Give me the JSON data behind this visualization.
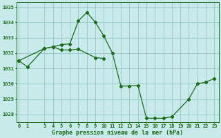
{
  "title": "Graphe pression niveau de la mer (hPa)",
  "bg_color": "#c8eaea",
  "grid_color": "#96c8c8",
  "line_color": "#1a6b1a",
  "series1_x": [
    0,
    1,
    3,
    4,
    5,
    6,
    7,
    8,
    9,
    10,
    11,
    12,
    13,
    14,
    15,
    16,
    17,
    18,
    20,
    21,
    22,
    23
  ],
  "series1_y": [
    1031.5,
    1031.1,
    1032.3,
    1032.4,
    1032.55,
    1032.6,
    1034.1,
    1034.65,
    1034.0,
    1033.1,
    1032.0,
    1029.85,
    1029.85,
    1029.9,
    1027.75,
    1027.75,
    1027.75,
    1027.85,
    1029.0,
    1030.0,
    1030.1,
    1030.35
  ],
  "series2_x": [
    0,
    3,
    4,
    5,
    6,
    7,
    9,
    10
  ],
  "series2_y": [
    1031.5,
    1032.3,
    1032.4,
    1032.2,
    1032.2,
    1032.25,
    1031.7,
    1031.65
  ],
  "x_ticks": [
    0,
    1,
    3,
    4,
    5,
    6,
    7,
    8,
    9,
    10,
    11,
    12,
    13,
    14,
    15,
    16,
    17,
    18,
    19,
    20,
    21,
    22,
    23
  ],
  "ylim": [
    1027.5,
    1035.3
  ],
  "xlim": [
    -0.3,
    23.5
  ],
  "yticks": [
    1028,
    1029,
    1030,
    1031,
    1032,
    1033,
    1034,
    1035
  ]
}
